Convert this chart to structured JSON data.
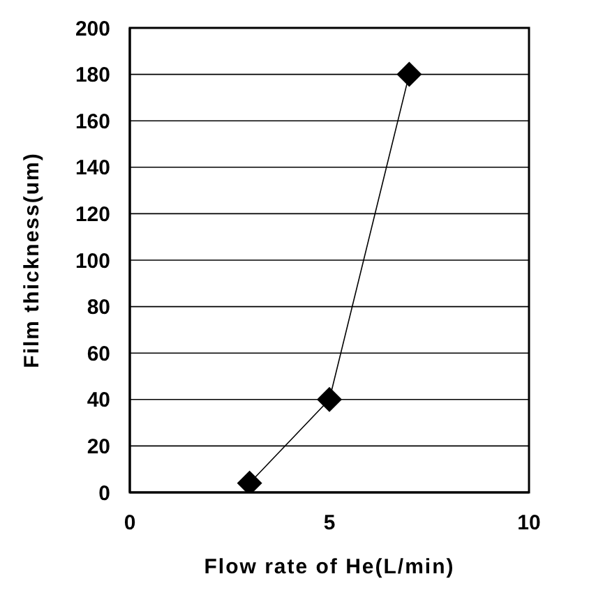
{
  "chart_data": {
    "type": "line",
    "xlabel": "Flow rate of He(L/min)",
    "ylabel": "Film thickness(um)",
    "x": [
      3,
      5,
      7
    ],
    "series": [
      {
        "color": "#000000",
        "values": [
          4,
          40,
          180
        ]
      }
    ],
    "xlim": [
      0,
      10
    ],
    "xticks": [
      0,
      5,
      10
    ],
    "ylim": [
      0,
      200
    ],
    "yticks": [
      0,
      20,
      40,
      60,
      80,
      100,
      120,
      140,
      160,
      180,
      200
    ],
    "grid": "y",
    "marker": "diamond",
    "line_style": "solid",
    "legend": false
  }
}
